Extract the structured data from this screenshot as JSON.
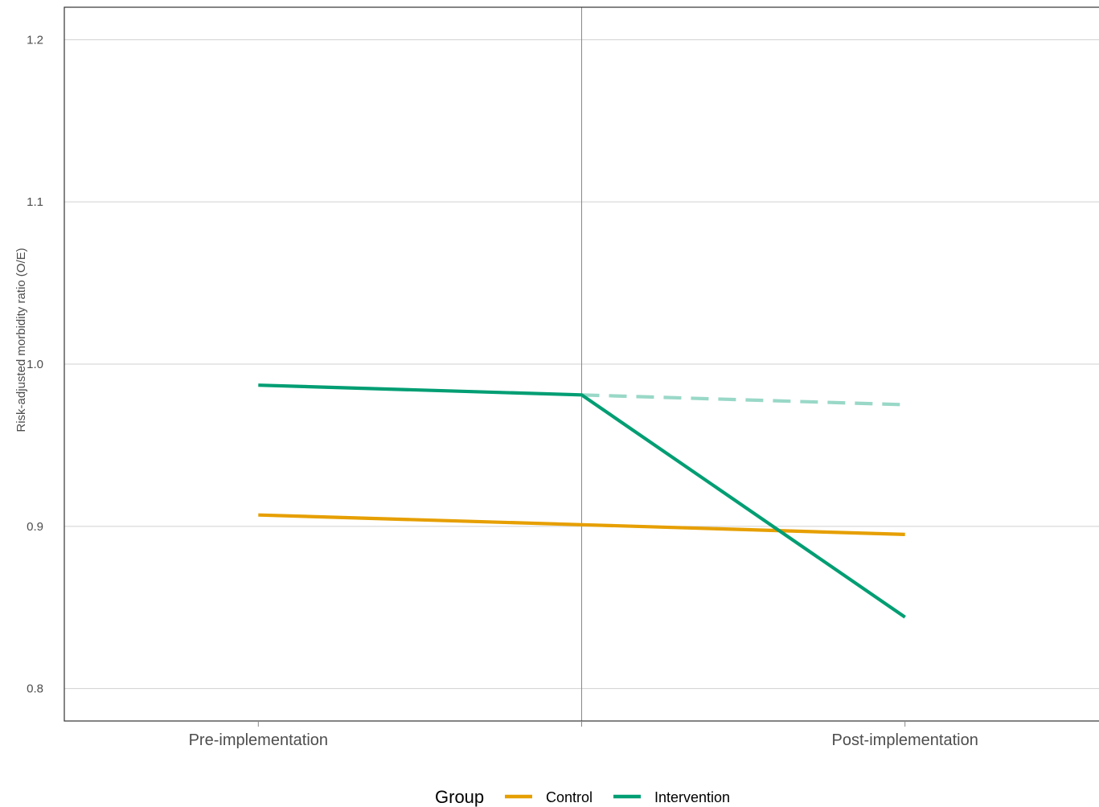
{
  "chart_data": {
    "type": "line",
    "ylabel": "Risk-adjusted morbidity ratio (O/E)",
    "xlabel": "",
    "title": "",
    "ylim": [
      0.78,
      1.22
    ],
    "yticks": [
      0.8,
      0.9,
      1.0,
      1.1,
      1.2
    ],
    "ytick_labels": [
      "0.8",
      "0.9",
      "1.0",
      "1.1",
      "1.2"
    ],
    "xlim": [
      -0.6,
      2.6
    ],
    "x_tick_positions": [
      0,
      1,
      2
    ],
    "x_tick_labels": [
      "Pre-implementation",
      "",
      "Post-implementation"
    ],
    "implementation_line_x": 1,
    "grid": "horizontal",
    "legend": {
      "title": "Group",
      "placement": "bottom",
      "entries": [
        "Control",
        "Intervention"
      ]
    },
    "series": [
      {
        "name": "Control",
        "color": "#E69F00",
        "style": "solid",
        "x": [
          0,
          1,
          2
        ],
        "y": [
          0.907,
          0.901,
          0.895
        ]
      },
      {
        "name": "Intervention",
        "color": "#009E73",
        "style": "solid",
        "x": [
          0,
          1,
          2
        ],
        "y": [
          0.987,
          0.981,
          0.844
        ]
      },
      {
        "color": "#009E73",
        "style": "dashed",
        "opacity": 0.4,
        "x": [
          1,
          2
        ],
        "y": [
          0.981,
          0.975
        ]
      }
    ]
  }
}
